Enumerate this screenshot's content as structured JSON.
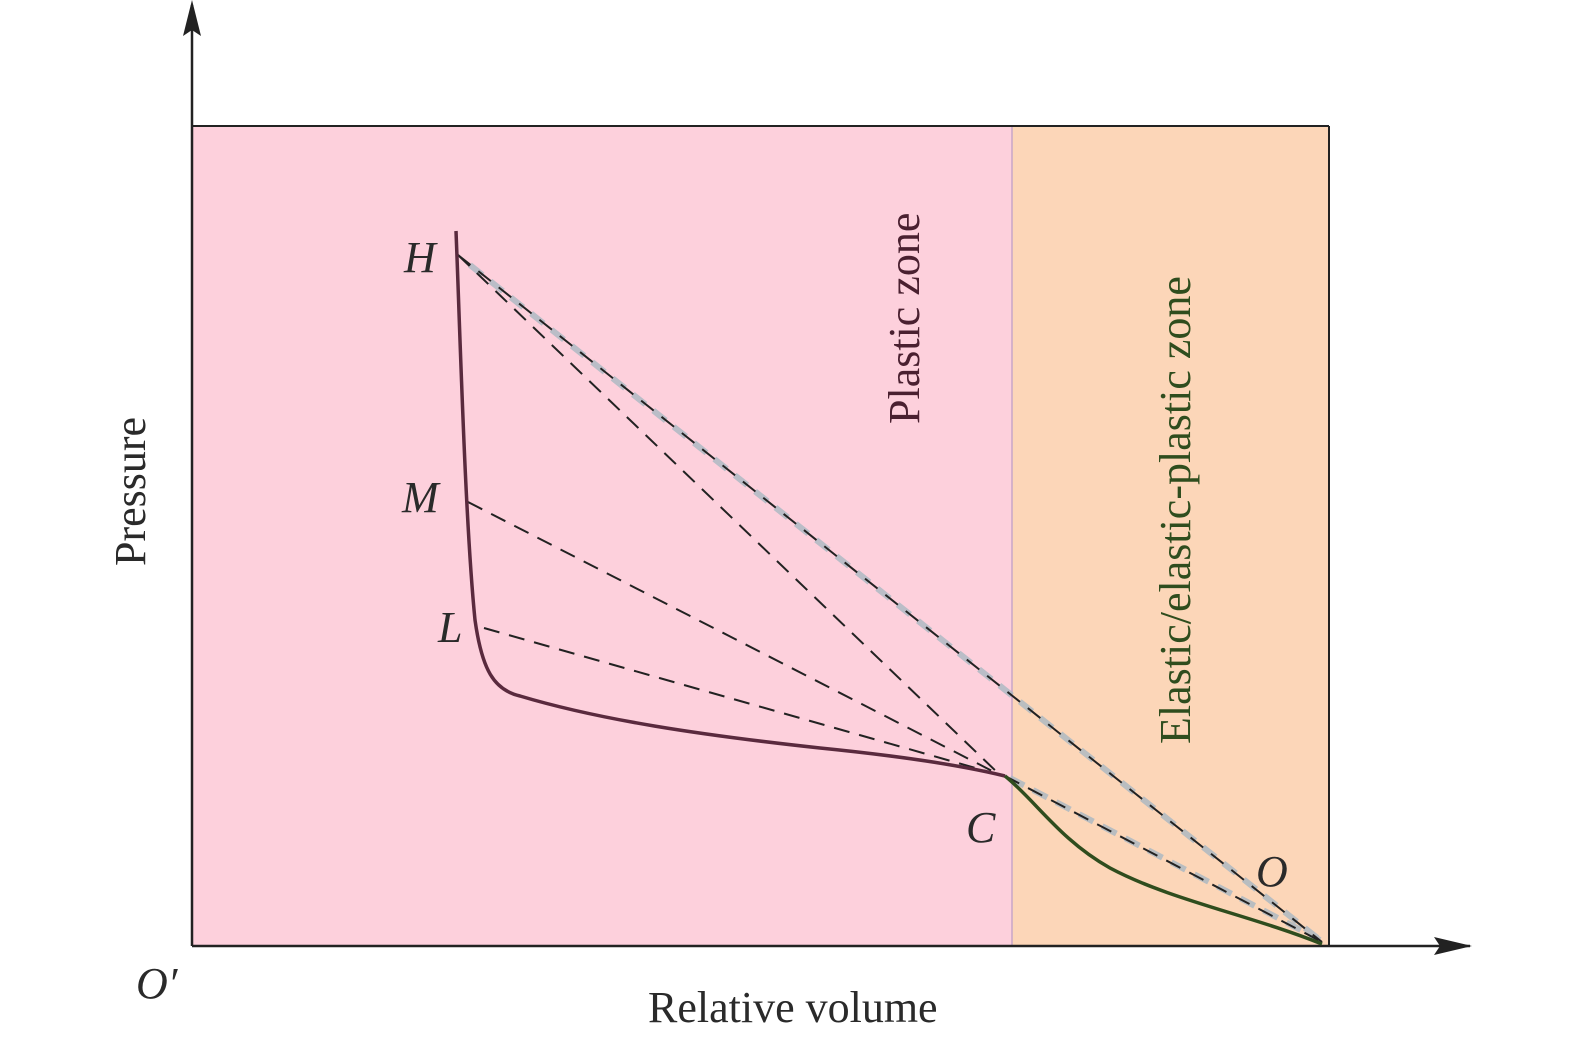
{
  "axes": {
    "x_label": "Relative volume",
    "y_label": "Pressure",
    "origin_label": "O′"
  },
  "zones": {
    "plastic": {
      "label": "Plastic zone",
      "fill": "#fdd0dc",
      "text_color": "#4a2030"
    },
    "elastic": {
      "label": "Elastic/elastic-plastic zone",
      "fill": "#fcd6b8",
      "text_color": "#2f4d1e"
    }
  },
  "points": {
    "H": "H",
    "M": "M",
    "L": "L",
    "C": "C",
    "O": "O"
  },
  "colors": {
    "curve_plastic": "#5a2a3e",
    "curve_elastic": "#2f4d1e",
    "dashed": "#222222",
    "dashed_shadow": "#a9b8c2",
    "axis": "#222222"
  }
}
